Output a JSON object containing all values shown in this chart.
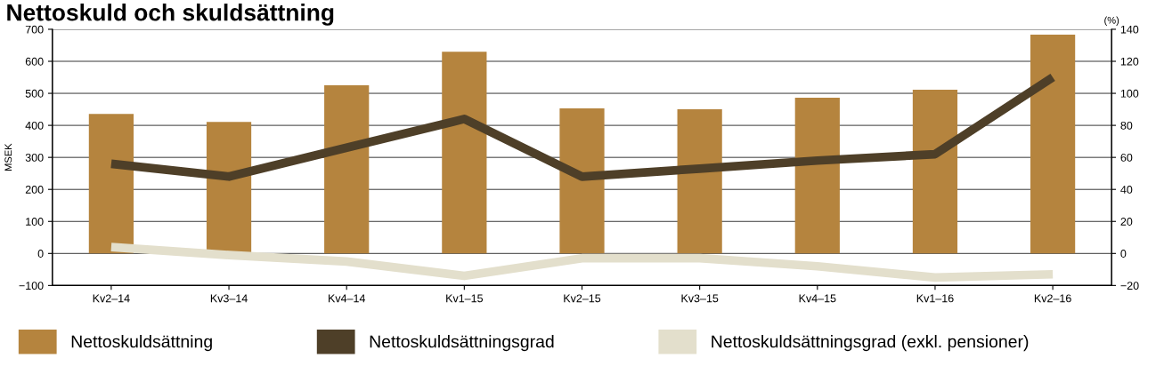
{
  "chart_data": {
    "type": "bar",
    "title": "Nettoskuld och skuldsättning",
    "ylabel": "MSEK",
    "y2label": "(%)",
    "categories": [
      "Kv2–14",
      "Kv3–14",
      "Kv4–14",
      "Kv1–15",
      "Kv2–15",
      "Kv3–15",
      "Kv4–15",
      "Kv1–16",
      "Kv2–16"
    ],
    "series": [
      {
        "name": "Nettoskuldsättning",
        "color": "#b5843e",
        "values": [
          436,
          411,
          525,
          630,
          453,
          450,
          486,
          511,
          683
        ]
      },
      {
        "name": "Nettoskuldsättningsgrad",
        "type": "line",
        "axis": "y2",
        "color": "#4e3f28",
        "values": [
          56,
          48,
          66,
          84,
          48,
          53,
          58,
          62,
          110
        ]
      },
      {
        "name": "Nettoskuldsättningsgrad (exkl. pensioner)",
        "type": "line",
        "axis": "y2",
        "color": "#e3dfcc",
        "values": [
          4,
          -1,
          -5,
          -14,
          -3,
          -3,
          -8,
          -15,
          -13
        ]
      }
    ],
    "ylim": [
      -100,
      700
    ],
    "yticks": [
      {
        "value": -100,
        "label": "−100"
      },
      0,
      100,
      200,
      300,
      400,
      500,
      600,
      700
    ],
    "y2lim": [
      -20,
      140
    ],
    "y2ticks": [
      {
        "value": -20,
        "label": "−20"
      },
      0,
      20,
      40,
      60,
      80,
      100,
      120,
      140
    ],
    "grid": "y",
    "legend": "bottom",
    "marker": "none",
    "line_style": "solid"
  }
}
